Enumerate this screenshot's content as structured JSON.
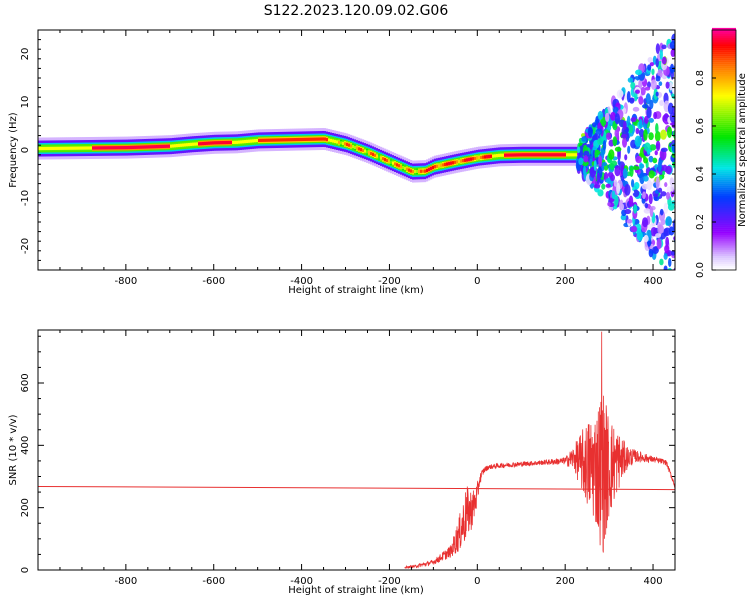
{
  "title": "S122.2023.120.09.02.G06",
  "chart_data": [
    {
      "type": "heatmap",
      "xlabel": "Height of straight line (km)",
      "ylabel": "Frequency (Hz)",
      "xlim": [
        -1000,
        450
      ],
      "ylim": [
        -25,
        25
      ],
      "xticks": [
        -800,
        -600,
        -400,
        -200,
        0,
        200,
        400
      ],
      "yticks": [
        -20,
        -10,
        0,
        10,
        20
      ],
      "colorbar": {
        "label": "Normalized spectral amplitude",
        "range": [
          0,
          1
        ],
        "ticks": [
          0.0,
          0.2,
          0.4,
          0.6,
          0.8
        ],
        "colormap": "rainbow (magenta-red high, white/lavender low)"
      },
      "ridge_centerline": {
        "x": [
          -1000,
          -900,
          -800,
          -700,
          -650,
          -600,
          -550,
          -500,
          -450,
          -400,
          -350,
          -300,
          -250,
          -200,
          -150,
          -120,
          -100,
          -50,
          0,
          50,
          100,
          150,
          200,
          230,
          260
        ],
        "freq": [
          0.3,
          0.4,
          0.5,
          0.8,
          1.2,
          1.5,
          1.6,
          2.0,
          2.1,
          2.2,
          2.3,
          1.2,
          -0.5,
          -2.5,
          -4.5,
          -4.4,
          -3.5,
          -2.5,
          -1.6,
          -1.1,
          -1.0,
          -1.0,
          -1.0,
          -1.0,
          -1.0
        ]
      }
    },
    {
      "type": "line",
      "xlabel": "Height of straight line (km)",
      "ylabel": "SNR (10 * v/v)",
      "xlim": [
        -1000,
        450
      ],
      "ylim": [
        0,
        770
      ],
      "xticks": [
        -800,
        -600,
        -400,
        -200,
        0,
        200,
        400
      ],
      "yticks": [
        0,
        200,
        400,
        600
      ],
      "series": [
        {
          "color": "#e83030",
          "style": "noisy",
          "x": [
            -165,
            -140,
            -100,
            -60,
            -40,
            -25,
            -10,
            0,
            5,
            15,
            25,
            50,
            100,
            150,
            200,
            220,
            250,
            270,
            285,
            300,
            320,
            340,
            360,
            400,
            430,
            450
          ],
          "y": [
            8,
            12,
            25,
            60,
            120,
            180,
            200,
            240,
            290,
            320,
            330,
            335,
            340,
            345,
            350,
            360,
            340,
            330,
            320,
            330,
            350,
            360,
            365,
            355,
            345,
            270
          ],
          "noise_amplitude": [
            3,
            5,
            8,
            20,
            60,
            90,
            60,
            40,
            20,
            10,
            8,
            8,
            8,
            8,
            12,
            40,
            140,
            190,
            280,
            170,
            100,
            40,
            20,
            10,
            8,
            8
          ],
          "peak": {
            "x": 283,
            "y": 765
          }
        },
        {
          "color": "#e83030",
          "style": "line",
          "x": [
            -1000,
            450
          ],
          "y": [
            268,
            258
          ]
        }
      ]
    }
  ]
}
